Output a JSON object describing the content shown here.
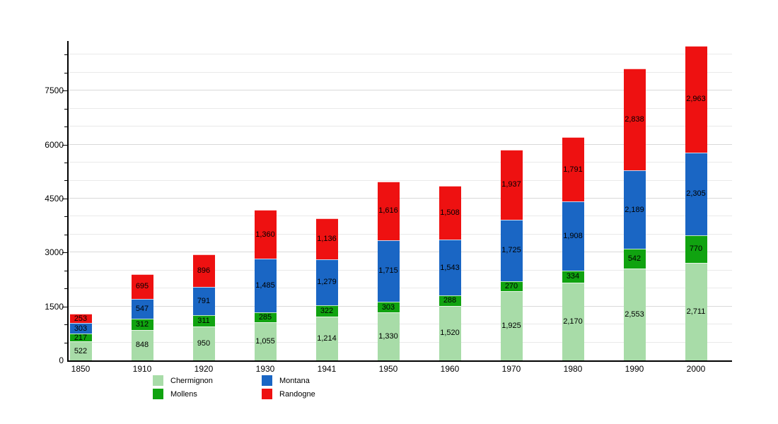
{
  "chart_data": {
    "type": "bar",
    "stacked": true,
    "title": "",
    "xlabel": "",
    "ylabel": "",
    "categories": [
      "1850",
      "1910",
      "1920",
      "1930",
      "1941",
      "1950",
      "1960",
      "1970",
      "1980",
      "1990",
      "2000"
    ],
    "series": [
      {
        "name": "Chermignon",
        "color": "#a8dca8",
        "values": [
          522,
          848,
          950,
          1055,
          1214,
          1330,
          1520,
          1925,
          2170,
          2553,
          2711
        ]
      },
      {
        "name": "Mollens",
        "color": "#10a310",
        "values": [
          217,
          312,
          311,
          285,
          322,
          303,
          288,
          270,
          334,
          542,
          770
        ]
      },
      {
        "name": "Montana",
        "color": "#1a66c4",
        "values": [
          303,
          547,
          791,
          1485,
          1279,
          1715,
          1543,
          1725,
          1908,
          2189,
          2305
        ]
      },
      {
        "name": "Randogne",
        "color": "#ee1111",
        "values": [
          253,
          695,
          896,
          1360,
          1136,
          1616,
          1508,
          1937,
          1791,
          2838,
          2963
        ]
      }
    ],
    "ylim": [
      0,
      8880
    ],
    "yticks": [
      0,
      1500,
      3000,
      4500,
      6000,
      7500
    ],
    "minor_step": 500,
    "grid": true,
    "legend_position": "bottom",
    "axis_color": "#000000",
    "background_color": "#ffffff"
  }
}
